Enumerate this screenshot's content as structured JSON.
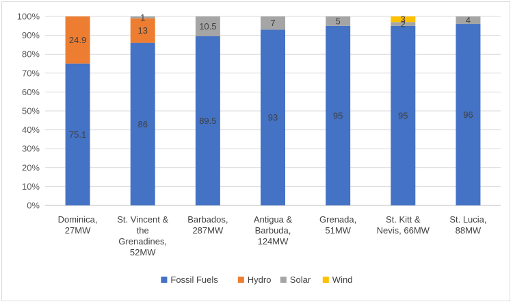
{
  "chart_data": {
    "type": "bar",
    "stacked": true,
    "percent": true,
    "grid": true,
    "legend_position": "bottom",
    "title": "",
    "xlabel": "",
    "ylabel": "",
    "ylim": [
      0,
      100
    ],
    "y_ticks": [
      "0%",
      "10%",
      "20%",
      "30%",
      "40%",
      "50%",
      "60%",
      "70%",
      "80%",
      "90%",
      "100%"
    ],
    "categories": [
      [
        "Dominica,",
        "27MW"
      ],
      [
        "St. Vincent &",
        "the",
        "Grenadines,",
        "52MW"
      ],
      [
        "Barbados,",
        "287MW"
      ],
      [
        "Antigua &",
        "Barbuda,",
        "124MW"
      ],
      [
        "Grenada,",
        "51MW"
      ],
      [
        "St. Kitt &",
        "Nevis, 66MW"
      ],
      [
        "St. Lucia,",
        "88MW"
      ]
    ],
    "series": [
      {
        "name": "Fossil Fuels",
        "color": "#4472C4",
        "values": [
          75.1,
          86,
          89.5,
          93,
          95,
          95,
          96
        ]
      },
      {
        "name": "Hydro",
        "color": "#ED7D31",
        "values": [
          24.9,
          13,
          null,
          null,
          null,
          null,
          null
        ]
      },
      {
        "name": "Solar",
        "color": "#A5A5A5",
        "values": [
          null,
          1,
          10.5,
          7,
          5,
          2,
          4
        ]
      },
      {
        "name": "Wind",
        "color": "#FFC000",
        "values": [
          null,
          null,
          null,
          null,
          null,
          3,
          null
        ]
      }
    ]
  }
}
